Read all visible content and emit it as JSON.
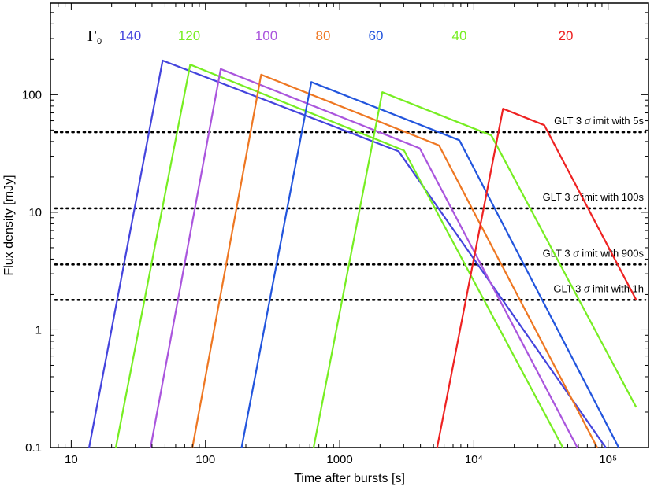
{
  "chart_data": {
    "type": "line",
    "xscale": "log",
    "yscale": "log",
    "xlabel": "Time after bursts [s]",
    "ylabel": "Flux density [mJy]",
    "xlim": [
      7,
      200000
    ],
    "ylim": [
      0.1,
      600
    ],
    "x_ticks": [
      {
        "value": 10,
        "label": "10"
      },
      {
        "value": 100,
        "label": "100"
      },
      {
        "value": 1000,
        "label": "1000"
      },
      {
        "value": 10000,
        "label": "10⁴"
      },
      {
        "value": 100000,
        "label": "10⁵"
      }
    ],
    "y_ticks": [
      {
        "value": 0.1,
        "label": "0.1"
      },
      {
        "value": 1,
        "label": "1"
      },
      {
        "value": 10,
        "label": "10"
      },
      {
        "value": 100,
        "label": "100"
      }
    ],
    "legend_title": {
      "symbol": "Γ",
      "subscript": "0"
    },
    "series": [
      {
        "name": "140",
        "color": "#4444dd",
        "x": [
          13.6,
          48,
          2750,
          96000
        ],
        "y": [
          0.1,
          195,
          33,
          0.1
        ]
      },
      {
        "name": "120",
        "color": "#77ee22",
        "x": [
          21.5,
          77,
          3020,
          46000
        ],
        "y": [
          0.1,
          180,
          33.5,
          0.1
        ]
      },
      {
        "name": "100",
        "color": "#aa55dd",
        "x": [
          39,
          130,
          3950,
          59000
        ],
        "y": [
          0.1,
          165,
          35,
          0.1
        ]
      },
      {
        "name": "80",
        "color": "#ee7722",
        "x": [
          80,
          260,
          5500,
          83000
        ],
        "y": [
          0.1,
          148,
          37,
          0.1
        ]
      },
      {
        "name": "60",
        "color": "#2255dd",
        "x": [
          186,
          615,
          7800,
          120000
        ],
        "y": [
          0.1,
          128,
          41,
          0.1
        ]
      },
      {
        "name": "40",
        "color": "#77ee22",
        "x": [
          640,
          2080,
          13500,
          162000
        ],
        "y": [
          0.1,
          105,
          45,
          0.22
        ]
      },
      {
        "name": "20",
        "color": "#ee2222",
        "x": [
          5330,
          16500,
          33500,
          162000
        ],
        "y": [
          0.1,
          76,
          55,
          1.8
        ]
      }
    ],
    "thresholds": [
      {
        "y": 48,
        "label": "GLT 3",
        "sigma": "σ",
        "suffix": " imit with 5s"
      },
      {
        "y": 10.8,
        "label": "GLT 3",
        "sigma": "σ",
        "suffix": " imit with 100s"
      },
      {
        "y": 3.6,
        "label": "GLT 3",
        "sigma": "σ",
        "suffix": " imit with 900s"
      },
      {
        "y": 1.8,
        "label": "GLT 3",
        "sigma": "σ",
        "suffix": " imit with 1h"
      }
    ]
  }
}
